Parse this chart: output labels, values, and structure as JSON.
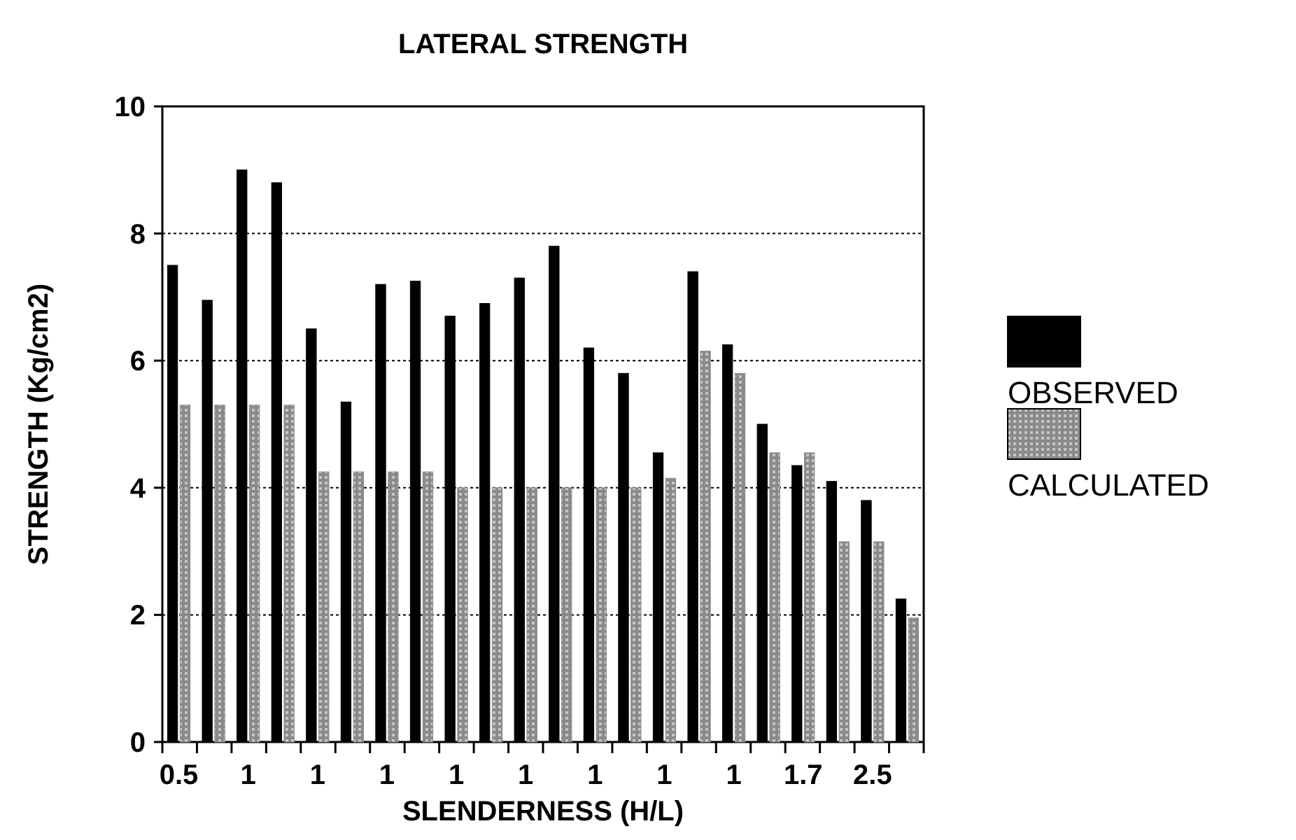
{
  "chart_data": {
    "type": "bar",
    "title": "LATERAL STRENGTH",
    "xlabel": "SLENDERNESS (H/L)",
    "ylabel": "STRENGTH (Kg/cm2)",
    "categories": [
      "0.5",
      null,
      "1",
      null,
      "1",
      null,
      "1",
      null,
      "1",
      null,
      "1",
      null,
      "1",
      null,
      "1",
      null,
      "1",
      null,
      "1.7",
      null,
      "2.5",
      null
    ],
    "series": [
      {
        "name": "OBSERVED",
        "color": "#000000",
        "values": [
          7.5,
          6.95,
          9.0,
          8.8,
          6.5,
          5.35,
          7.2,
          7.25,
          6.7,
          6.9,
          7.3,
          7.8,
          6.2,
          5.8,
          4.55,
          7.4,
          6.25,
          5.0,
          4.35,
          4.1,
          3.8,
          2.25
        ]
      },
      {
        "name": "CALCULATED",
        "color": "#8a8a8a",
        "values": [
          5.3,
          5.3,
          5.3,
          5.3,
          4.25,
          4.25,
          4.25,
          4.25,
          4.0,
          4.0,
          4.0,
          4.0,
          4.0,
          4.0,
          4.15,
          6.15,
          5.8,
          4.55,
          4.55,
          3.15,
          3.15,
          1.95
        ]
      }
    ],
    "ylim": [
      0,
      10
    ],
    "yticks": [
      0,
      2,
      4,
      6,
      8,
      10
    ],
    "grid": "y",
    "legend": "right"
  }
}
